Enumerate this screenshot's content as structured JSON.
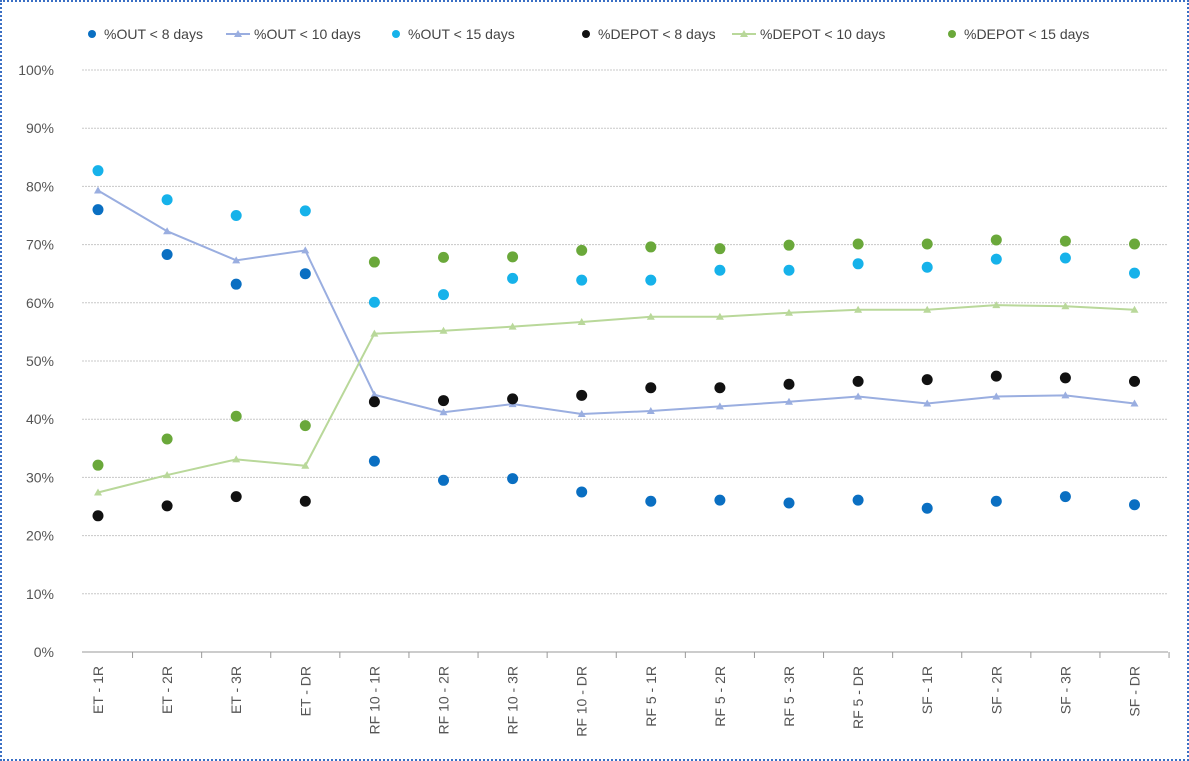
{
  "chart_data": {
    "type": "line",
    "categories": [
      "ET - 1R",
      "ET - 2R",
      "ET - 3R",
      "ET - DR",
      "RF 10 - 1R",
      "RF 10 - 2R",
      "RF 10 - 3R",
      "RF 10 - DR",
      "RF 5 - 1R",
      "RF 5 - 2R",
      "RF 5 - 3R",
      "RF 5 - DR",
      "SF - 1R",
      "SF - 2R",
      "SF - 3R",
      "SF - DR"
    ],
    "ylim": [
      0,
      100
    ],
    "yticks": [
      "0%",
      "10%",
      "20%",
      "30%",
      "40%",
      "50%",
      "60%",
      "70%",
      "80%",
      "90%",
      "100%"
    ],
    "grid": true,
    "legend_position": "top",
    "series": [
      {
        "name": "%OUT < 8 days",
        "style": "marker",
        "color": "#0a6fc2",
        "values": [
          76,
          68.3,
          63.2,
          65,
          32.8,
          29.5,
          29.8,
          27.5,
          25.9,
          26.1,
          25.6,
          26.1,
          24.7,
          25.9,
          26.7,
          25.3
        ]
      },
      {
        "name": "%OUT < 10 days",
        "style": "line-triangle",
        "color": "#9aaee0",
        "values": [
          79.3,
          72.3,
          67.3,
          69,
          44.2,
          41.2,
          42.6,
          40.9,
          41.4,
          42.2,
          43,
          43.9,
          42.7,
          43.9,
          44.1,
          42.7
        ]
      },
      {
        "name": "%OUT < 15 days",
        "style": "marker",
        "color": "#16b2ea",
        "values": [
          82.7,
          77.7,
          75,
          75.8,
          60.1,
          61.4,
          64.2,
          63.9,
          63.9,
          65.6,
          65.6,
          66.7,
          66.1,
          67.5,
          67.7,
          65.1
        ]
      },
      {
        "name": "%DEPOT < 8 days",
        "style": "marker",
        "color": "#111111",
        "values": [
          23.4,
          25.1,
          26.7,
          25.9,
          43,
          43.2,
          43.5,
          44.1,
          45.4,
          45.4,
          46,
          46.5,
          46.8,
          47.4,
          47.1,
          46.5
        ]
      },
      {
        "name": "%DEPOT < 10 days",
        "style": "line-triangle",
        "color": "#b9d89a",
        "values": [
          27.4,
          30.4,
          33.1,
          32,
          54.7,
          55.2,
          55.9,
          56.7,
          57.6,
          57.6,
          58.3,
          58.8,
          58.8,
          59.6,
          59.4,
          58.8
        ]
      },
      {
        "name": "%DEPOT < 15 days",
        "style": "marker",
        "color": "#6aa83a",
        "values": [
          32.1,
          36.6,
          40.5,
          38.9,
          67,
          67.8,
          67.9,
          69,
          69.6,
          69.3,
          69.9,
          70.1,
          70.1,
          70.8,
          70.6,
          70.1
        ]
      }
    ]
  }
}
